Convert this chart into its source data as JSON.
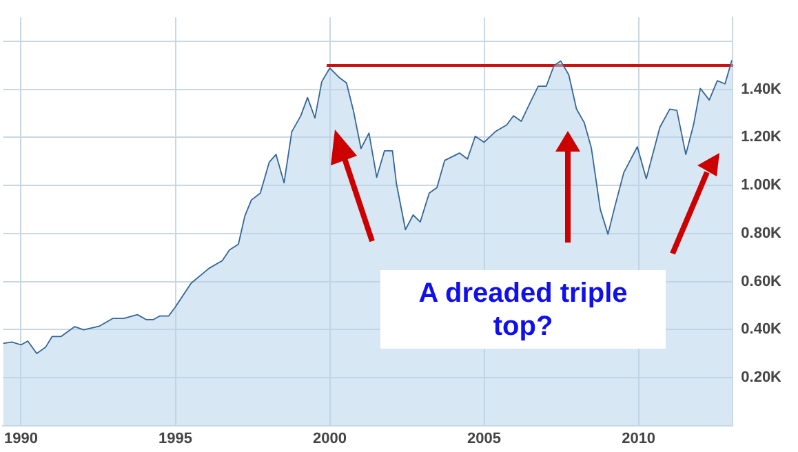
{
  "chart_data": {
    "type": "area",
    "xlim": [
      1989.42,
      2013.05
    ],
    "xticks": [
      1990,
      1995,
      2000,
      2005,
      2010
    ],
    "ylim": [
      0,
      1.7
    ],
    "yticks": [
      {
        "value": 0.2,
        "label": "0.20K"
      },
      {
        "value": 0.4,
        "label": "0.40K"
      },
      {
        "value": 0.6,
        "label": "0.60K"
      },
      {
        "value": 0.8,
        "label": "0.80K"
      },
      {
        "value": 1.0,
        "label": "1.00K"
      },
      {
        "value": 1.2,
        "label": "1.20K"
      },
      {
        "value": 1.4,
        "label": "1.40K"
      },
      {
        "value": 1.6,
        "label": null
      }
    ],
    "grid": true,
    "legend": false,
    "marker": "none",
    "annotations": [
      "A dreaded triple top?"
    ],
    "series": [
      {
        "color": "#336699",
        "x": [
          1989.42,
          1989.71,
          1990.0,
          1990.22,
          1990.51,
          1990.8,
          1991.01,
          1991.3,
          1991.74,
          1992.03,
          1992.54,
          1992.97,
          1993.33,
          1993.77,
          1994.06,
          1994.28,
          1994.49,
          1994.78,
          1995.0,
          1995.51,
          1996.09,
          1996.52,
          1996.75,
          1997.04,
          1997.25,
          1997.46,
          1997.75,
          1998.04,
          1998.26,
          1998.52,
          1998.77,
          1999.06,
          1999.28,
          1999.52,
          1999.74,
          2000.0,
          2000.29,
          2000.54,
          2000.77,
          2001.01,
          2001.27,
          2001.52,
          2001.77,
          2002.03,
          2002.16,
          2002.45,
          2002.7,
          2002.93,
          2003.22,
          2003.47,
          2003.72,
          2004.2,
          2004.46,
          2004.71,
          2005.0,
          2005.36,
          2005.73,
          2005.95,
          2006.2,
          2006.46,
          2006.75,
          2007.01,
          2007.26,
          2007.48,
          2007.74,
          2007.99,
          2008.24,
          2008.47,
          2008.76,
          2009.01,
          2009.23,
          2009.52,
          2009.96,
          2010.25,
          2010.69,
          2011.01,
          2011.24,
          2011.53,
          2011.78,
          2012.0,
          2012.29,
          2012.55,
          2012.8,
          2013.02
        ],
        "values": [
          0.342,
          0.348,
          0.336,
          0.352,
          0.3,
          0.327,
          0.371,
          0.371,
          0.412,
          0.399,
          0.414,
          0.446,
          0.446,
          0.462,
          0.441,
          0.441,
          0.456,
          0.456,
          0.494,
          0.593,
          0.655,
          0.687,
          0.731,
          0.755,
          0.873,
          0.939,
          0.968,
          1.097,
          1.129,
          1.011,
          1.224,
          1.29,
          1.366,
          1.281,
          1.432,
          1.489,
          1.451,
          1.427,
          1.309,
          1.154,
          1.218,
          1.034,
          1.144,
          1.144,
          1.006,
          0.816,
          0.877,
          0.848,
          0.968,
          0.991,
          1.104,
          1.135,
          1.11,
          1.205,
          1.18,
          1.224,
          1.252,
          1.29,
          1.267,
          1.337,
          1.413,
          1.413,
          1.499,
          1.518,
          1.461,
          1.318,
          1.262,
          1.157,
          0.901,
          0.797,
          0.911,
          1.053,
          1.161,
          1.028,
          1.242,
          1.318,
          1.313,
          1.129,
          1.252,
          1.404,
          1.356,
          1.436,
          1.423,
          1.521
        ]
      },
      {
        "type": "line",
        "color": "#cc1111",
        "x": [
          1999.9,
          2013.05
        ],
        "values": [
          1.5,
          1.5
        ]
      }
    ]
  }
}
